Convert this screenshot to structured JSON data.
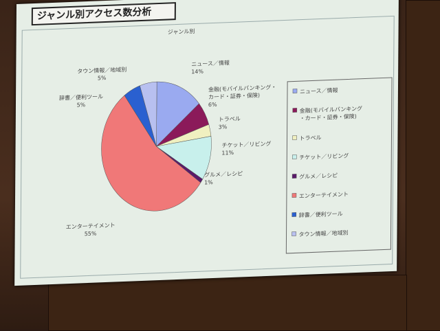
{
  "slide": {
    "title": "ジャンル別アクセス数分析"
  },
  "chart_data": {
    "type": "pie",
    "title": "ジャンル別",
    "legend_position": "right",
    "start": "12 o'clock, clockwise",
    "slices": [
      {
        "name": "ニュース／情報",
        "value": 14,
        "label": "14%",
        "color": "#9aaaf0"
      },
      {
        "name": "金融(モバイルバンキング・カード・証券・保険)",
        "value": 6,
        "label": "6%",
        "color": "#8b1a5a"
      },
      {
        "name": "トラベル",
        "value": 3,
        "label": "3%",
        "color": "#f0f0c0"
      },
      {
        "name": "チケット／リビング",
        "value": 11,
        "label": "11%",
        "color": "#c8f0ec"
      },
      {
        "name": "グルメ／レシピ",
        "value": 1,
        "label": "1%",
        "color": "#5a1a6a"
      },
      {
        "name": "エンターテイメント",
        "value": 55,
        "label": "55%",
        "color": "#f07878"
      },
      {
        "name": "辞書／便利ツール",
        "value": 5,
        "label": "5%",
        "color": "#2a60d0"
      },
      {
        "name": "タウン情報／地域別",
        "value": 5,
        "label": "5%",
        "color": "#b8c0f0"
      }
    ]
  }
}
